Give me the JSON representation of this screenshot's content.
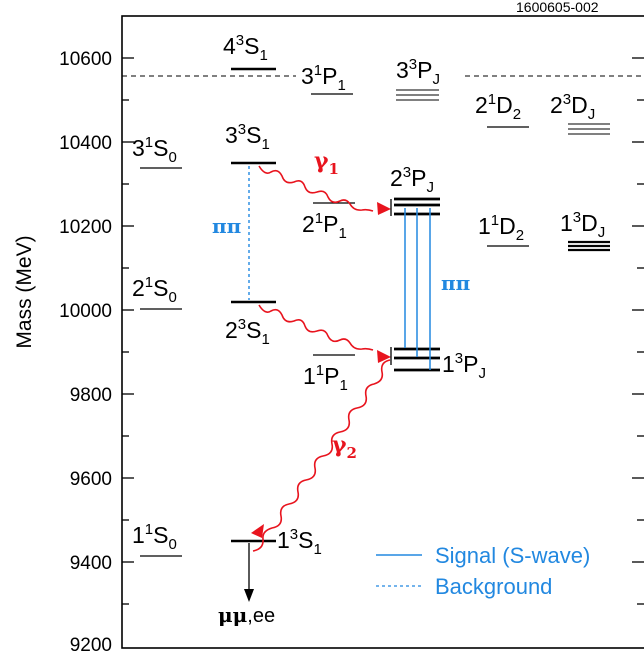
{
  "figure_id": "1600605-002",
  "axis": {
    "label": "Mass (MeV)",
    "ticks": [
      "10600",
      "10400",
      "10200",
      "10000",
      "9800",
      "9600",
      "9400",
      "9200"
    ]
  },
  "states": {
    "s_4_3S1": {
      "n": "4",
      "s": "3",
      "L": "S",
      "J": "1"
    },
    "s_3_1P1": {
      "n": "3",
      "s": "1",
      "L": "P",
      "J": "1"
    },
    "s_3_3PJ": {
      "n": "3",
      "s": "3",
      "L": "P",
      "J": "J"
    },
    "s_2_1D2": {
      "n": "2",
      "s": "1",
      "L": "D",
      "J": "2"
    },
    "s_2_3DJ": {
      "n": "2",
      "s": "3",
      "L": "D",
      "J": "J"
    },
    "s_3_1S0": {
      "n": "3",
      "s": "1",
      "L": "S",
      "J": "0"
    },
    "s_3_3S1": {
      "n": "3",
      "s": "3",
      "L": "S",
      "J": "1"
    },
    "s_2_3PJ": {
      "n": "2",
      "s": "3",
      "L": "P",
      "J": "J"
    },
    "s_2_1P1": {
      "n": "2",
      "s": "1",
      "L": "P",
      "J": "1"
    },
    "s_1_1D2": {
      "n": "1",
      "s": "1",
      "L": "D",
      "J": "2"
    },
    "s_1_3DJ": {
      "n": "1",
      "s": "3",
      "L": "D",
      "J": "J"
    },
    "s_2_1S0": {
      "n": "2",
      "s": "1",
      "L": "S",
      "J": "0"
    },
    "s_2_3S1": {
      "n": "2",
      "s": "3",
      "L": "S",
      "J": "1"
    },
    "s_1_1P1": {
      "n": "1",
      "s": "1",
      "L": "P",
      "J": "1"
    },
    "s_1_3PJ": {
      "n": "1",
      "s": "3",
      "L": "P",
      "J": "J"
    },
    "s_1_1S0": {
      "n": "1",
      "s": "1",
      "L": "S",
      "J": "0"
    },
    "s_1_3S1": {
      "n": "1",
      "s": "3",
      "L": "S",
      "J": "1"
    }
  },
  "transitions": {
    "gamma1": {
      "sym": "γ",
      "sub": "1"
    },
    "gamma2": {
      "sym": "γ",
      "sub": "2"
    },
    "pipi_left": "ππ",
    "pipi_right": "ππ"
  },
  "decay_label": {
    "muons": "μμ",
    "rest": ",ee"
  },
  "legend": {
    "signal": "Signal (S-wave)",
    "background": "Background"
  },
  "colors": {
    "photon": "#e8141e",
    "pion": "#2288e0",
    "ink": "#000000"
  }
}
